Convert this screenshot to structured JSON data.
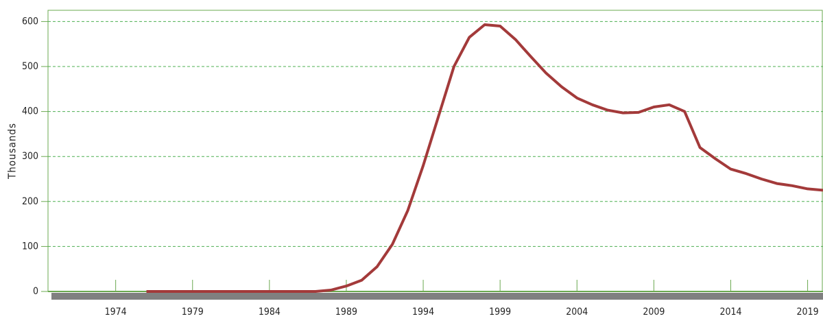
{
  "chart_data": {
    "type": "line",
    "y_label": "Thousands",
    "x": [
      1976,
      1977,
      1978,
      1979,
      1980,
      1981,
      1982,
      1983,
      1984,
      1985,
      1986,
      1987,
      1988,
      1989,
      1990,
      1991,
      1992,
      1993,
      1994,
      1995,
      1996,
      1997,
      1998,
      1999,
      2000,
      2001,
      2002,
      2003,
      2004,
      2005,
      2006,
      2007,
      2008,
      2009,
      2010,
      2011,
      2012,
      2013,
      2014,
      2015,
      2016,
      2017,
      2018,
      2019,
      2020
    ],
    "series": [
      {
        "name": "Value",
        "color": "#a33a3a",
        "values": [
          0,
          0,
          0,
          0,
          0,
          0,
          0,
          0,
          0,
          0,
          0,
          0,
          3,
          12,
          25,
          55,
          105,
          180,
          280,
          390,
          500,
          565,
          593,
          590,
          560,
          522,
          485,
          455,
          430,
          415,
          403,
          397,
          398,
          410,
          415,
          400,
          320,
          295,
          272,
          262,
          250,
          240,
          235,
          228,
          225
        ]
      }
    ],
    "xlim": [
      1969.6,
      2020
    ],
    "xticks": [
      1974,
      1979,
      1984,
      1989,
      1994,
      1999,
      2004,
      2009,
      2014,
      2019
    ],
    "ylim": [
      0,
      625
    ],
    "yticks": [
      0,
      100,
      200,
      300,
      400,
      500,
      600
    ],
    "grid": true
  }
}
